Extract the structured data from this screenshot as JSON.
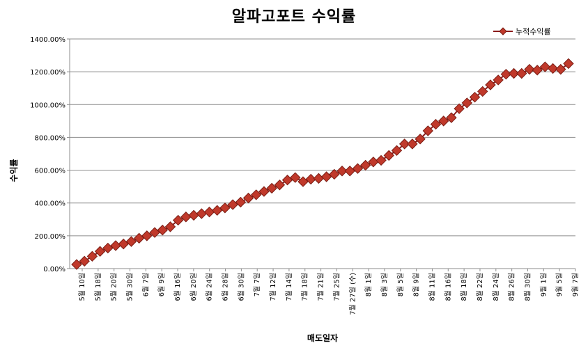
{
  "chart_data": {
    "type": "line",
    "title": "알파고포트 수익률",
    "xlabel": "매도일자",
    "ylabel": "수익률",
    "ylim": [
      0,
      1400
    ],
    "y_unit": "%",
    "y_ticks": [
      "0.00%",
      "200.00%",
      "400.00%",
      "600.00%",
      "800.00%",
      "1000.00%",
      "1200.00%",
      "1400.00%"
    ],
    "grid": "horizontal",
    "legend": {
      "position": "top-right",
      "entries": [
        "누적수익률"
      ]
    },
    "series_color": "#C0392B",
    "marker": "diamond",
    "x_tick_labels": [
      "5월 10일",
      "5월 18일",
      "5월 20일",
      "5월 30일",
      "6월 7일",
      "6월 9일",
      "6월 16일",
      "6월 20일",
      "6월 24일",
      "6월 28일",
      "6월 30일",
      "7월 7일",
      "7월 12일",
      "7월 14일",
      "7월 18일",
      "7월 21일",
      "7월 25일",
      "7월 27일 (수)",
      "8월 1일",
      "8월 3일",
      "8월 5일",
      "8월 9일",
      "8월 11일",
      "8월 16일",
      "8월 18일",
      "8월 22일",
      "8월 24일",
      "8월 26일",
      "8월 30일",
      "9월 1일",
      "9월 5일",
      "9월 7일"
    ],
    "series": [
      {
        "name": "누적수익률",
        "values": [
          25,
          45,
          75,
          105,
          125,
          140,
          150,
          165,
          185,
          200,
          220,
          235,
          255,
          295,
          315,
          325,
          335,
          345,
          355,
          370,
          390,
          405,
          430,
          450,
          470,
          490,
          510,
          540,
          555,
          530,
          545,
          550,
          560,
          575,
          595,
          595,
          610,
          630,
          650,
          660,
          690,
          720,
          760,
          760,
          790,
          840,
          880,
          900,
          920,
          975,
          1010,
          1045,
          1080,
          1120,
          1150,
          1185,
          1190,
          1190,
          1215,
          1210,
          1230,
          1220,
          1215,
          1250
        ]
      }
    ]
  }
}
